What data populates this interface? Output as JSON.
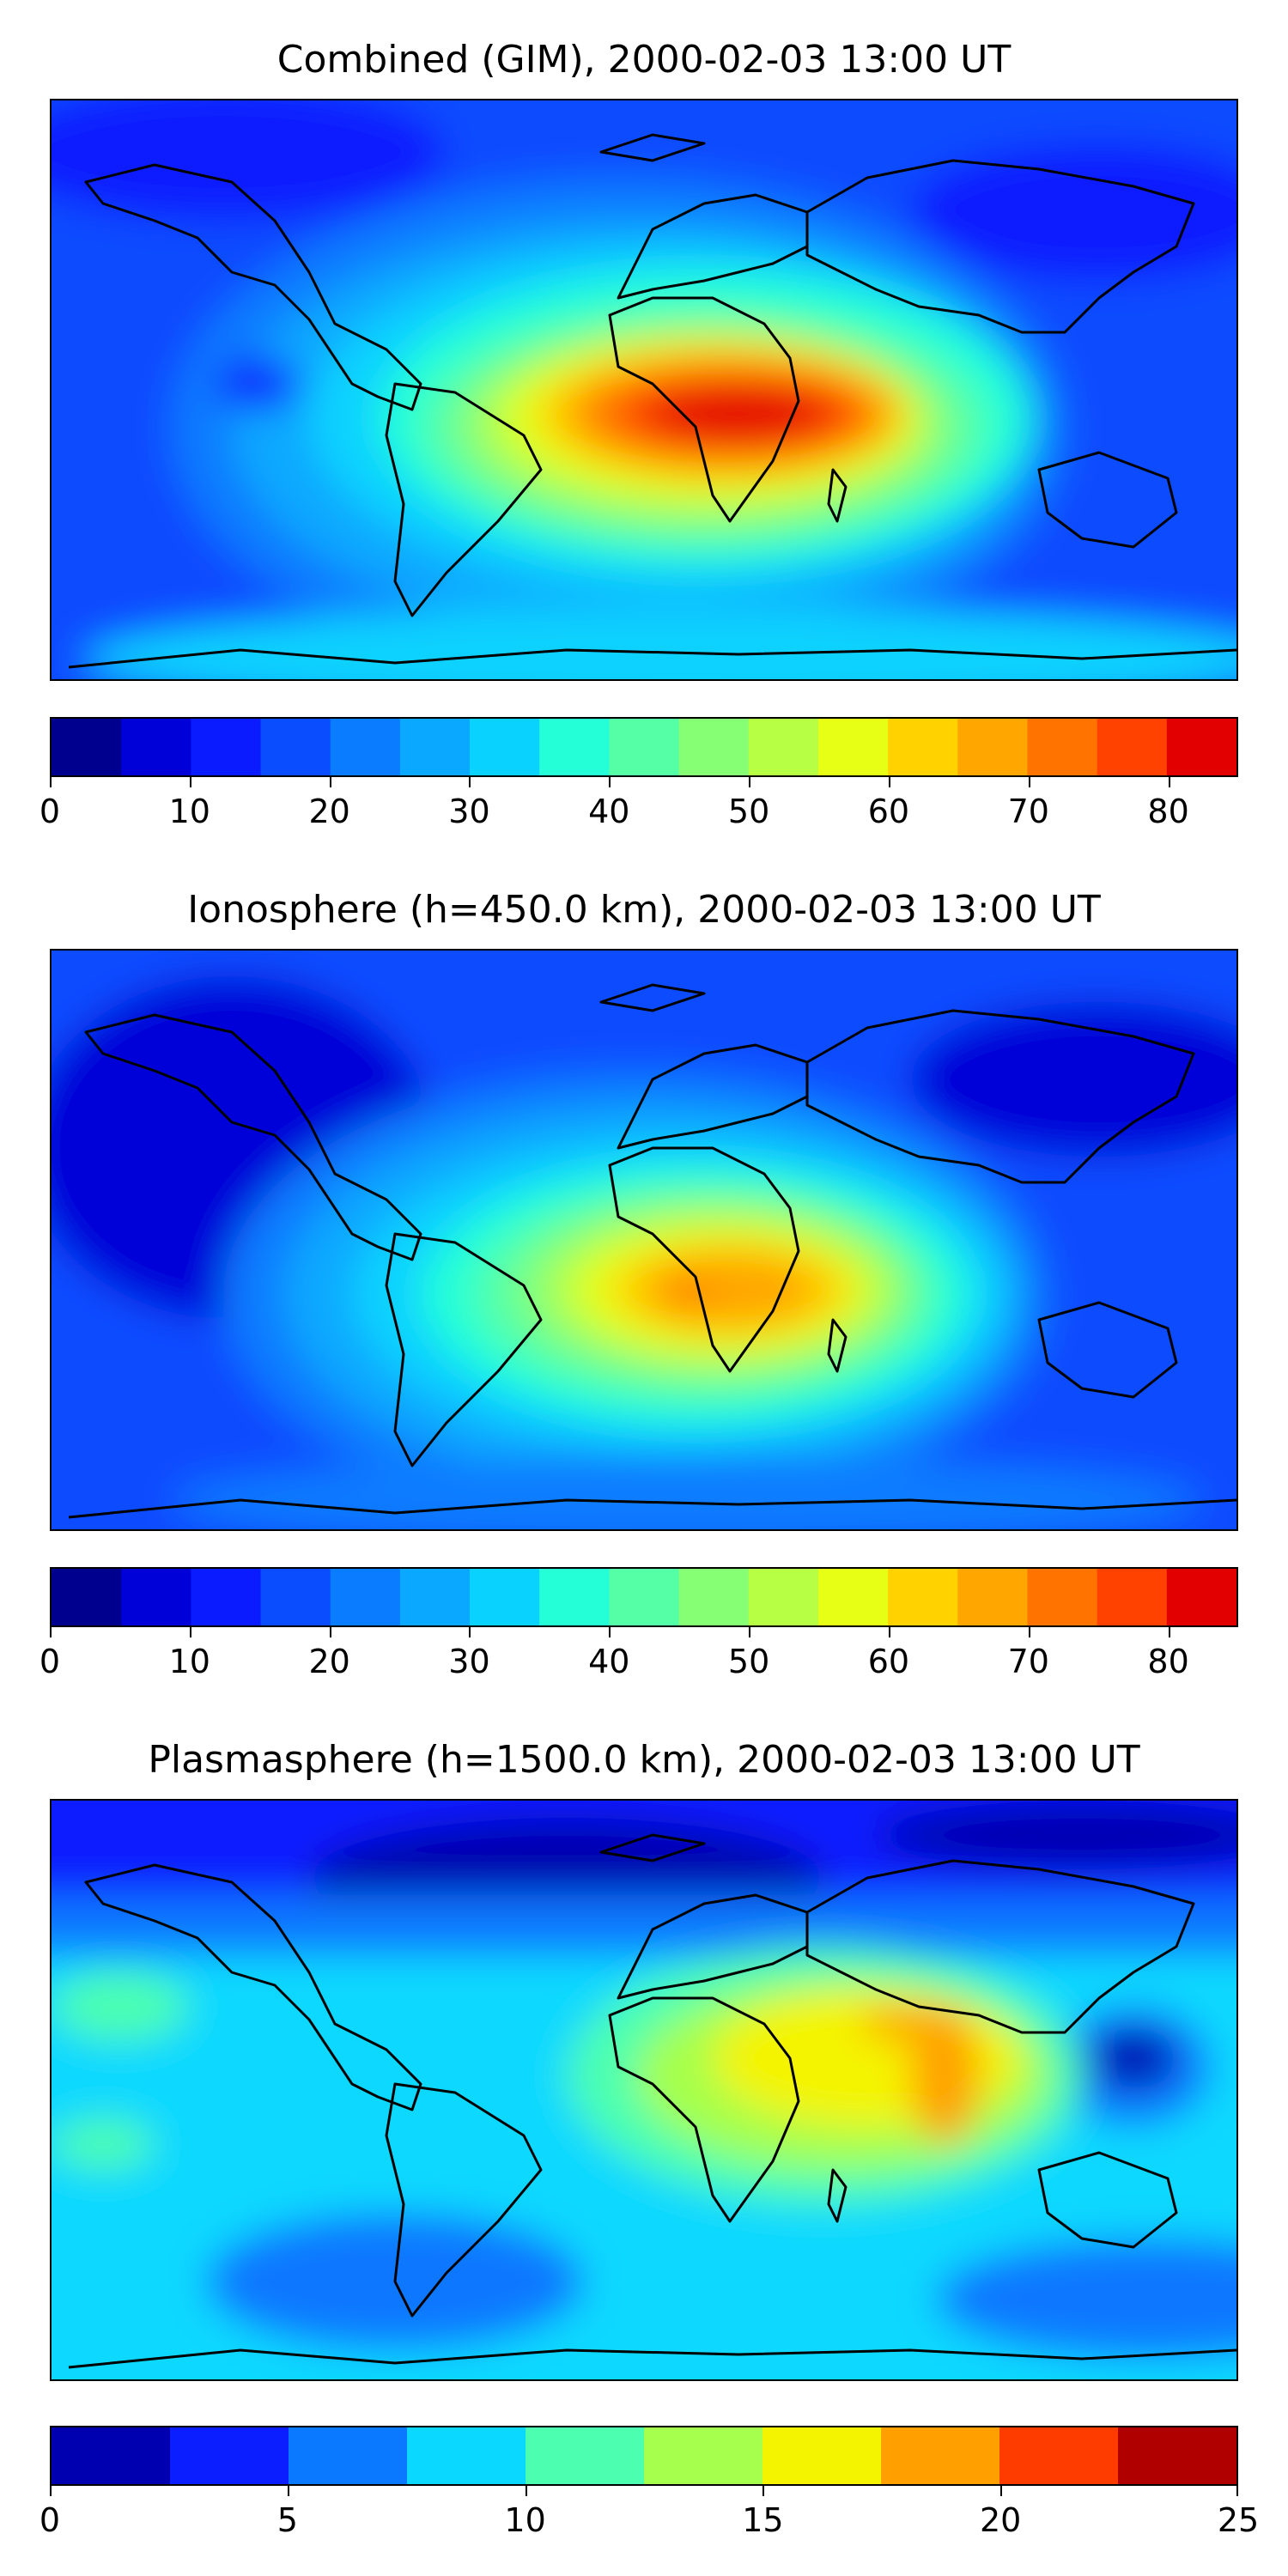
{
  "panels": [
    {
      "title": "Combined (GIM), 2000-02-03 13:00 UT",
      "colorbar": {
        "min": 0,
        "max": 85,
        "levels": [
          0,
          5,
          10,
          15,
          20,
          25,
          30,
          35,
          40,
          45,
          50,
          55,
          60,
          65,
          70,
          75,
          80,
          85
        ],
        "tick_values": [
          0,
          10,
          20,
          30,
          40,
          50,
          60,
          70,
          80
        ],
        "tick_labels": [
          "0",
          "10",
          "20",
          "30",
          "40",
          "50",
          "60",
          "70",
          "80"
        ],
        "colors": [
          "#00008f",
          "#0000d8",
          "#0a1cff",
          "#0a4cff",
          "#0a7cff",
          "#0aa8ff",
          "#0ad2ff",
          "#24ffd8",
          "#55ffa6",
          "#86ff75",
          "#b6ff45",
          "#e6ff14",
          "#ffd200",
          "#ffa600",
          "#ff7400",
          "#ff4200",
          "#e20000",
          "#a00000"
        ]
      }
    },
    {
      "title": "Ionosphere  (h=450.0 km), 2000-02-03 13:00 UT",
      "colorbar": {
        "min": 0,
        "max": 85,
        "levels": [
          0,
          5,
          10,
          15,
          20,
          25,
          30,
          35,
          40,
          45,
          50,
          55,
          60,
          65,
          70,
          75,
          80,
          85
        ],
        "tick_values": [
          0,
          10,
          20,
          30,
          40,
          50,
          60,
          70,
          80
        ],
        "tick_labels": [
          "0",
          "10",
          "20",
          "30",
          "40",
          "50",
          "60",
          "70",
          "80"
        ],
        "colors": [
          "#00008f",
          "#0000d8",
          "#0a1cff",
          "#0a4cff",
          "#0a7cff",
          "#0aa8ff",
          "#0ad2ff",
          "#24ffd8",
          "#55ffa6",
          "#86ff75",
          "#b6ff45",
          "#e6ff14",
          "#ffd200",
          "#ffa600",
          "#ff7400",
          "#ff4200",
          "#e20000",
          "#a00000"
        ]
      }
    },
    {
      "title": "Plasmasphere (h=1500.0 km), 2000-02-03 13:00 UT",
      "colorbar": {
        "min": 0,
        "max": 25,
        "levels": [
          0,
          2.5,
          5,
          7.5,
          10,
          12.5,
          15,
          17.5,
          20,
          22.5,
          25
        ],
        "tick_values": [
          0,
          5,
          10,
          15,
          20,
          25
        ],
        "tick_labels": [
          "0",
          "5",
          "10",
          "15",
          "20",
          "25"
        ],
        "colors": [
          "#0000b0",
          "#0a1eff",
          "#0a78ff",
          "#0ad8ff",
          "#4cffb0",
          "#a6ff4c",
          "#f4f400",
          "#ffa000",
          "#ff3c00",
          "#b00000"
        ]
      }
    }
  ]
}
